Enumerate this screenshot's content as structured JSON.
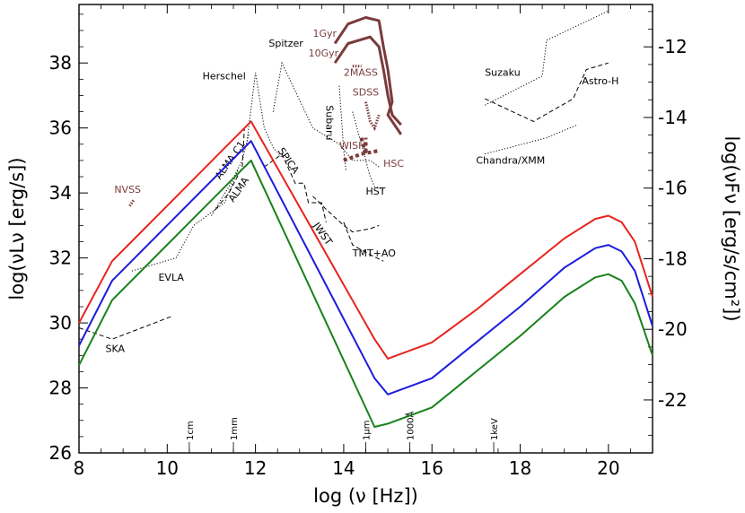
{
  "chart_data": {
    "type": "line",
    "xlabel": "log (ν [Hz])",
    "ylabel_left": "log(νLν [erg/s])",
    "ylabel_right": "log(νFν [erg/s/cm²])",
    "xlim": [
      8,
      21
    ],
    "ylim_left": [
      26,
      39.8
    ],
    "ylim_right": [
      -23.5,
      -10.8
    ],
    "x_ticks": [
      8,
      10,
      12,
      14,
      16,
      18,
      20
    ],
    "y_ticks_left": [
      26,
      28,
      30,
      32,
      34,
      36,
      38
    ],
    "y_ticks_right": [
      -22,
      -20,
      -18,
      -16,
      -14,
      -12
    ],
    "series": [
      {
        "color": "#e8231e",
        "x": [
          8,
          8.75,
          11.9,
          14.7,
          15.0,
          16,
          17,
          18,
          19,
          19.7,
          20,
          20.3,
          20.6,
          21
        ],
        "y": [
          30.0,
          31.9,
          36.2,
          29.5,
          28.9,
          29.4,
          30.4,
          31.5,
          32.6,
          33.2,
          33.3,
          33.1,
          32.5,
          30.8
        ]
      },
      {
        "color": "#1c1cdc",
        "x": [
          8,
          8.75,
          11.9,
          14.7,
          15.0,
          16,
          17,
          18,
          19,
          19.7,
          20,
          20.3,
          20.6,
          21
        ],
        "y": [
          29.3,
          31.3,
          35.6,
          28.3,
          27.8,
          28.3,
          29.4,
          30.5,
          31.7,
          32.3,
          32.4,
          32.2,
          31.6,
          29.9
        ]
      },
      {
        "color": "#17821a",
        "x": [
          8,
          8.75,
          11.9,
          14.7,
          15.0,
          16,
          17,
          18,
          19,
          19.7,
          20,
          20.3,
          20.6,
          21
        ],
        "y": [
          28.7,
          30.7,
          35.0,
          26.8,
          26.9,
          27.4,
          28.5,
          29.6,
          30.8,
          31.4,
          31.5,
          31.3,
          30.6,
          29.0
        ]
      }
    ],
    "sensitivity_curves": [
      {
        "label": "SKA",
        "style": "dashed",
        "x": [
          8.0,
          8.75,
          10.1
        ],
        "y": [
          29.85,
          29.5,
          30.2
        ],
        "lx": 8.6,
        "ly": 29.1
      },
      {
        "label": "EVLA",
        "style": "dotted",
        "x": [
          9.2,
          10.2,
          10.6,
          11.3,
          11.6
        ],
        "y": [
          31.6,
          32.0,
          33.0,
          33.7,
          34.7
        ],
        "lx": 9.8,
        "ly": 31.3
      },
      {
        "label": "ALMA",
        "style": "dashed",
        "x": [
          11.1,
          11.4,
          11.7,
          11.75
        ],
        "y": [
          33.5,
          34.0,
          34.8,
          36.0
        ],
        "lx": 11.5,
        "ly": 33.7
      },
      {
        "label": "ALMA C1",
        "style": "dotted",
        "x": [
          11.0,
          11.4,
          11.7,
          11.85
        ],
        "y": [
          33.3,
          34.2,
          35.0,
          35.8
        ],
        "lx": 11.2,
        "ly": 34.4
      },
      {
        "label": "Herschel",
        "style": "dotted",
        "x": [
          11.8,
          12.0,
          12.2,
          12.4,
          12.6
        ],
        "y": [
          35.5,
          37.7,
          36.0,
          35.4,
          35.1
        ],
        "lx": 10.8,
        "ly": 37.5
      },
      {
        "label": "Spitzer",
        "style": "dotted",
        "x": [
          12.4,
          12.6,
          13.3,
          13.9,
          14.2,
          14.6,
          14.8
        ],
        "y": [
          36.5,
          38.0,
          36.0,
          35.5,
          35.0,
          35.0,
          34.8
        ],
        "lx": 12.3,
        "ly": 38.5
      },
      {
        "label": "SPICA",
        "style": "dashed",
        "x": [
          12.2,
          12.6,
          12.9,
          13.1,
          13.2,
          13.5,
          13.6
        ],
        "y": [
          34.8,
          35.2,
          34.3,
          34.3,
          33.7,
          33.7,
          33.1
        ],
        "lx": 12.5,
        "ly": 35.3
      },
      {
        "label": "JWST",
        "style": "dashed",
        "x": [
          13.3,
          13.6,
          14.0,
          14.2,
          14.6,
          14.8
        ],
        "y": [
          33.9,
          33.5,
          33.0,
          32.8,
          32.9,
          33.0
        ],
        "lx": 13.3,
        "ly": 33.0
      },
      {
        "label": "TMT+AO",
        "style": "dashed",
        "x": [
          14.0,
          14.2,
          14.6,
          14.9
        ],
        "y": [
          33.1,
          32.4,
          32.1,
          31.9
        ],
        "lx": 14.2,
        "ly": 32.05
      },
      {
        "label": "Subaru",
        "style": "dotted",
        "x": [
          13.9,
          14.0,
          14.05
        ],
        "y": [
          37.3,
          35.3,
          34.7
        ],
        "lx": 13.6,
        "ly": 36.7
      },
      {
        "label": "HST",
        "style": "dotted",
        "x": [
          14.2,
          14.6,
          14.7,
          14.9
        ],
        "y": [
          36.5,
          34.5,
          34.2,
          34.1
        ],
        "lx": 14.5,
        "ly": 33.95
      },
      {
        "label": "Suzaku",
        "style": "dotted",
        "x": [
          17.2,
          18.5,
          18.6,
          20.0
        ],
        "y": [
          36.7,
          37.6,
          38.7,
          39.6
        ],
        "lx": 17.2,
        "ly": 37.6
      },
      {
        "label": "Astro-H",
        "style": "dashed",
        "x": [
          17.2,
          18.3,
          19.2,
          19.5,
          20.0
        ],
        "y": [
          36.9,
          36.2,
          36.9,
          37.8,
          38.0
        ],
        "lx": 19.4,
        "ly": 37.35
      },
      {
        "label": "Chandra/XMM",
        "style": "dotted",
        "x": [
          17.2,
          18.6,
          19.3
        ],
        "y": [
          35.2,
          35.7,
          36.1
        ],
        "lx": 17.0,
        "ly": 34.9
      }
    ],
    "galaxy_curves": [
      {
        "label": "1Gyr",
        "x": [
          13.8,
          14.1,
          14.5,
          14.8,
          14.9,
          15.0,
          15.1,
          15.0,
          15.3
        ],
        "y": [
          38.6,
          39.2,
          39.4,
          39.3,
          38.5,
          37.8,
          36.8,
          36.4,
          35.8
        ],
        "lx": 13.3,
        "ly": 38.8
      },
      {
        "label": "10Gyr",
        "x": [
          13.8,
          14.1,
          14.6,
          14.8,
          14.9,
          15.0,
          15.1,
          15.3
        ],
        "y": [
          38.0,
          38.6,
          38.8,
          38.5,
          37.8,
          37.0,
          36.4,
          36.1
        ],
        "lx": 13.2,
        "ly": 38.2
      }
    ],
    "instrument_marks": [
      {
        "label": "NVSS",
        "x": [
          9.15,
          9.25
        ],
        "y": [
          33.6,
          33.8
        ],
        "lx": 8.8,
        "ly": 34.0,
        "weight": "thin"
      },
      {
        "label": "2MASS",
        "x": [
          14.2,
          14.4
        ],
        "y": [
          37.9,
          37.9
        ],
        "lx": 14.0,
        "ly": 37.6,
        "weight": "thin"
      },
      {
        "label": "SDSS",
        "x": [
          14.5,
          14.6,
          14.7,
          14.8
        ],
        "y": [
          36.8,
          36.2,
          36.0,
          36.4
        ],
        "lx": 14.2,
        "ly": 37.0,
        "weight": "thin"
      },
      {
        "label": "WISH",
        "x": [
          14.4,
          14.5,
          14.5
        ],
        "y": [
          35.7,
          35.2,
          35.7
        ],
        "lx": 13.9,
        "ly": 35.35,
        "weight": "thick"
      },
      {
        "label": "HSC",
        "x": [
          14.0,
          14.4,
          14.8
        ],
        "y": [
          35.0,
          35.2,
          35.3
        ],
        "lx": 14.9,
        "ly": 34.8,
        "weight": "thick"
      }
    ],
    "band_markers": [
      {
        "label": "1cm",
        "x": 10.5
      },
      {
        "label": "1mm",
        "x": 11.5
      },
      {
        "label": "1µm",
        "x": 14.5
      },
      {
        "label": "1000Å",
        "x": 15.5
      },
      {
        "label": "1keV",
        "x": 17.4
      }
    ],
    "colors": {
      "red": "#e8231e",
      "blue": "#1c1cdc",
      "green": "#17821a",
      "brown": "#7a3b3b"
    }
  }
}
